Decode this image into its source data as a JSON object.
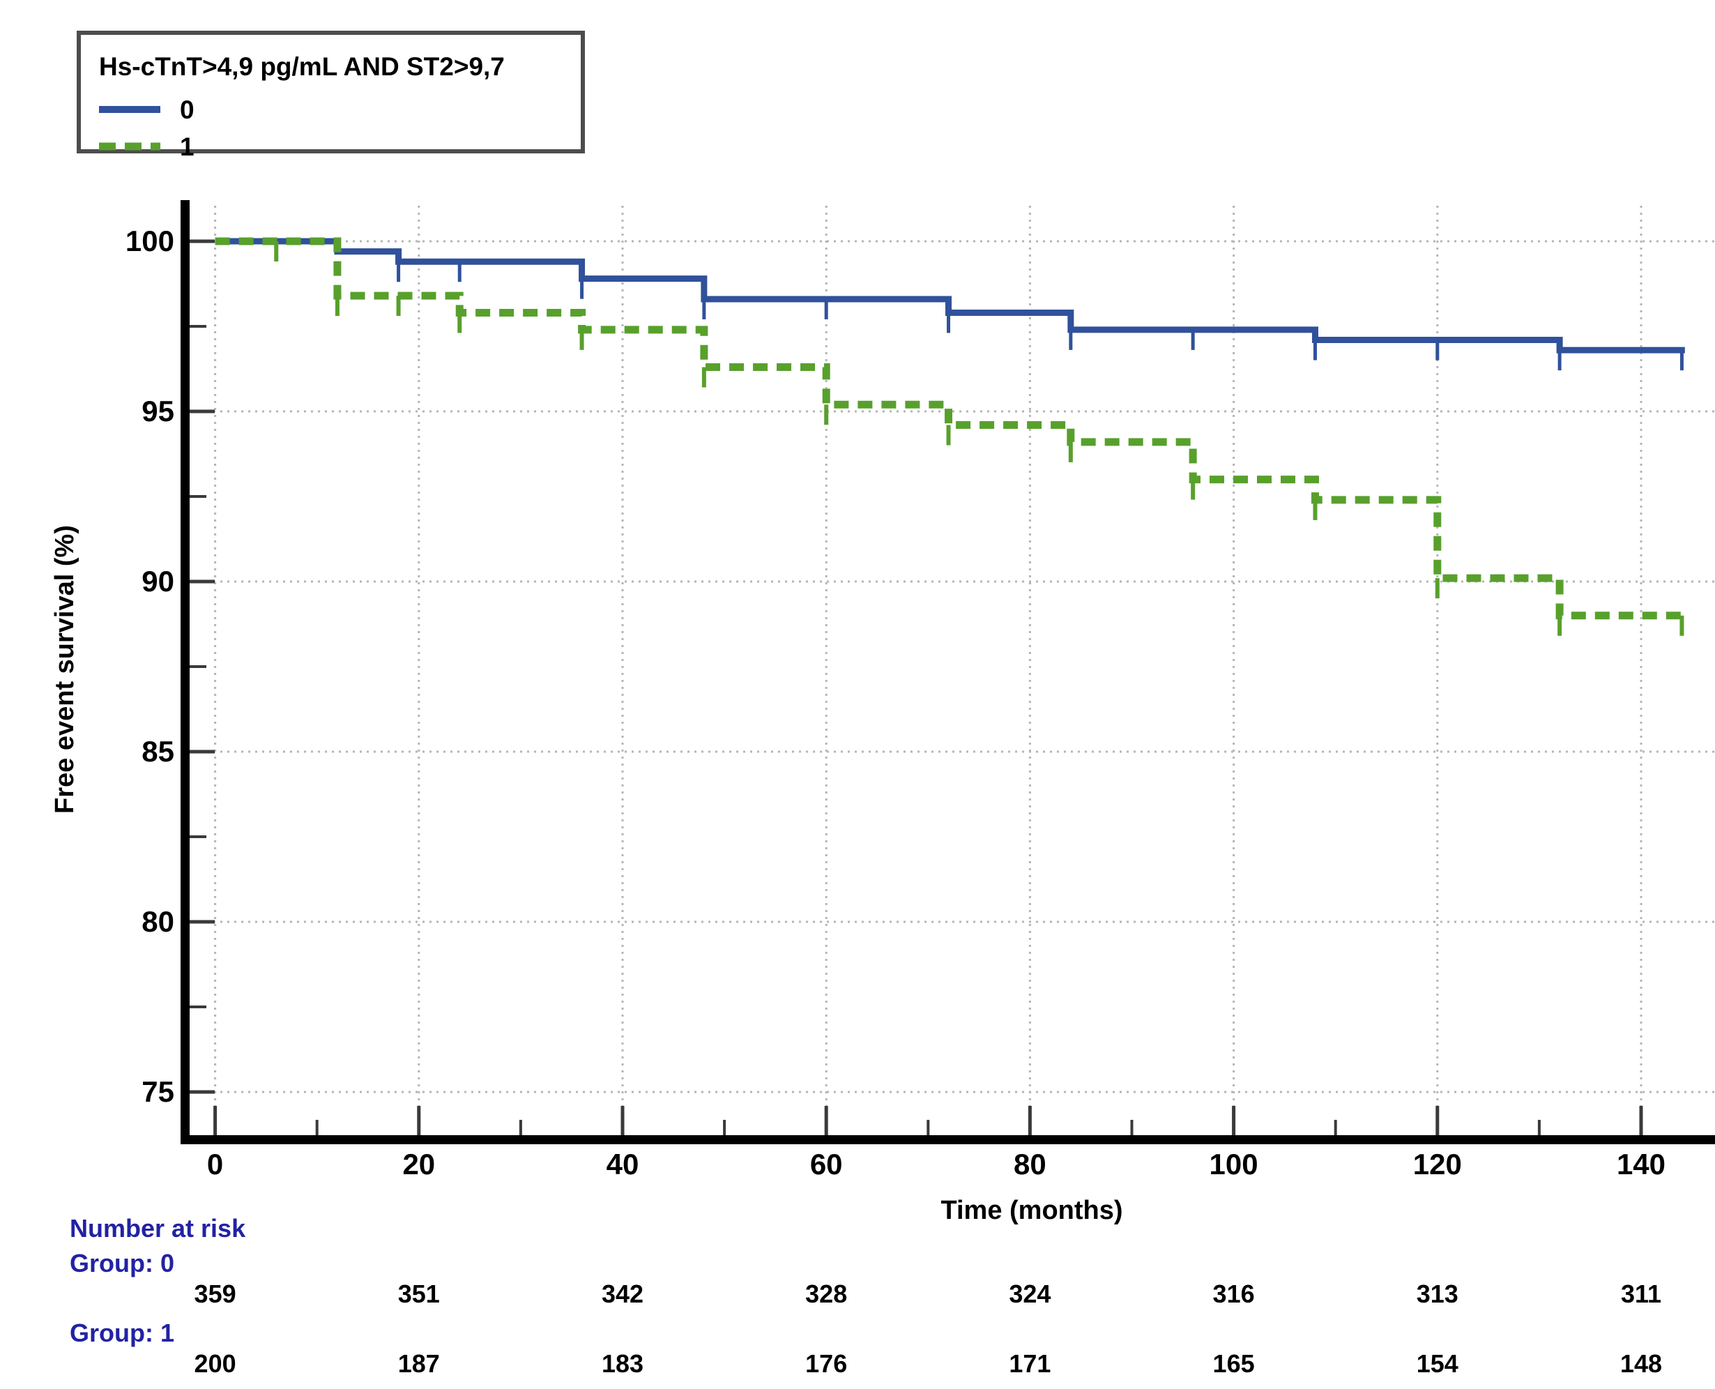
{
  "page": {
    "background": "#ffffff"
  },
  "legend": {
    "title": "Hs-cTnT>4,9 pg/mL AND ST2>9,7",
    "entries": [
      {
        "label": "0",
        "color": "#30519B",
        "style": "solid"
      },
      {
        "label": "1",
        "color": "#58A02C",
        "style": "dashed"
      }
    ]
  },
  "axes": {
    "x_label": "Time (months)",
    "y_label": "Free event survival (%)",
    "x_major_ticks": [
      0,
      20,
      40,
      60,
      80,
      100,
      120,
      140
    ],
    "x_minor_ticks": [
      10,
      30,
      50,
      70,
      90,
      110,
      130,
      150
    ],
    "y_major_ticks": [
      100,
      95,
      90,
      85,
      80,
      75
    ],
    "y_minor_ticks": [
      97.5,
      92.5,
      87.5,
      82.5,
      77.5
    ]
  },
  "chart_data": {
    "type": "line",
    "subtype": "kaplan-meier-step-survival",
    "title": "",
    "xlabel": "Time (months)",
    "ylabel": "Free event survival (%)",
    "xlim": [
      0,
      147
    ],
    "ylim": [
      74,
      101.5
    ],
    "grid": "dotted",
    "legend_position": "top-left",
    "legend_title": "Hs-cTnT>4,9 pg/mL AND ST2>9,7",
    "series": [
      {
        "name": "0",
        "color": "#30519B",
        "line": "solid",
        "steps": [
          [
            0,
            100
          ],
          [
            12,
            99.7
          ],
          [
            18,
            99.4
          ],
          [
            36,
            98.9
          ],
          [
            48,
            98.3
          ],
          [
            72,
            97.9
          ],
          [
            84,
            97.4
          ],
          [
            108,
            97.1
          ],
          [
            132,
            96.8
          ]
        ],
        "end_time": 144.3,
        "censor_times": [
          18,
          24,
          36,
          48,
          60,
          72,
          84,
          96,
          108,
          120,
          132,
          144
        ]
      },
      {
        "name": "1",
        "color": "#58A02C",
        "line": "dashed",
        "steps": [
          [
            0,
            100
          ],
          [
            12,
            98.4
          ],
          [
            24,
            97.9
          ],
          [
            36,
            97.4
          ],
          [
            48,
            96.3
          ],
          [
            60,
            95.2
          ],
          [
            72,
            94.6
          ],
          [
            84,
            94.1
          ],
          [
            96,
            93.0
          ],
          [
            108,
            92.4
          ],
          [
            120,
            90.1
          ],
          [
            132,
            89.0
          ]
        ],
        "end_time": 144.3,
        "censor_times": [
          6,
          12,
          18,
          24,
          36,
          48,
          60,
          72,
          84,
          96,
          108,
          120,
          132,
          144
        ]
      }
    ]
  },
  "risk_table": {
    "header": "Number at risk",
    "times": [
      0,
      20,
      40,
      60,
      80,
      100,
      120,
      140
    ],
    "groups": [
      {
        "label": "Group: 0",
        "counts": [
          359,
          351,
          342,
          328,
          324,
          316,
          313,
          311
        ]
      },
      {
        "label": "Group: 1",
        "counts": [
          200,
          187,
          183,
          176,
          171,
          165,
          154,
          148
        ]
      }
    ]
  },
  "colors": {
    "axis": "#000000",
    "tick": "#3a3a3a",
    "grid": "#b5b5b5",
    "risk_text": "#2222A4",
    "legend_border": "#4d4d4d"
  }
}
